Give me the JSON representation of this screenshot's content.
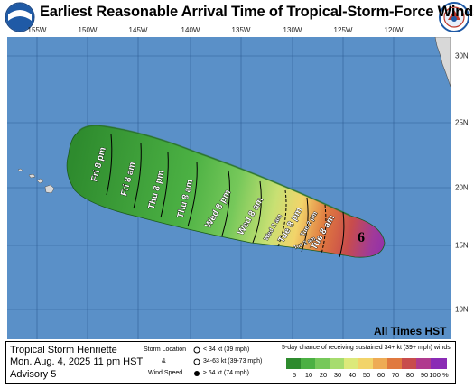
{
  "title": "Earliest Reasonable Arrival Time of Tropical-Storm-Force Winds",
  "logos": {
    "left": "noaa-logo",
    "right": "nws-logo"
  },
  "axes": {
    "longitude_labels": [
      "155W",
      "150W",
      "145W",
      "140W",
      "135W",
      "130W",
      "125W",
      "120W"
    ],
    "latitude_labels": [
      "30N",
      "25N",
      "20N",
      "15N",
      "10N"
    ]
  },
  "arrival_labels": [
    "Fri 8 pm",
    "Fri 8 am",
    "Thu 8 pm",
    "Thu 8 am",
    "Wed 8 pm",
    "Wed 8 am",
    "Wed 2 am",
    "Tue 8 pm",
    "Tue 2 pm",
    "Tue 8 am",
    "Tue 2 am"
  ],
  "storm_symbol": "6",
  "times_note": "All Times HST",
  "storm_info": {
    "name": "Tropical Storm Henriette",
    "datetime": "Mon. Aug. 4, 2025  11 pm HST",
    "advisory": "Advisory 5"
  },
  "symbol_legend": {
    "storm_location": "Storm Location",
    "and": "&",
    "wind_speed": "Wind Speed",
    "lt34": "< 34 kt (39 mph)",
    "r34_63": "34-63 kt (39-73 mph)",
    "ge64": "≥ 64 kt (74 mph)"
  },
  "probability_key": {
    "title": "5-day chance of receiving sustained 34+ kt (39+ mph) winds",
    "labels": [
      "5",
      "10",
      "20",
      "30",
      "40",
      "50",
      "60",
      "70",
      "80",
      "90",
      "100 %"
    ],
    "colors": [
      "#2e8b2e",
      "#4bb043",
      "#76c85a",
      "#a6dc6e",
      "#dce97a",
      "#f2d46a",
      "#eeab55",
      "#e0793f",
      "#c84c4c",
      "#b03a8e",
      "#8a2bb5"
    ]
  },
  "colors": {
    "ocean": "#5a90c8",
    "land": "#d8d8d8"
  }
}
